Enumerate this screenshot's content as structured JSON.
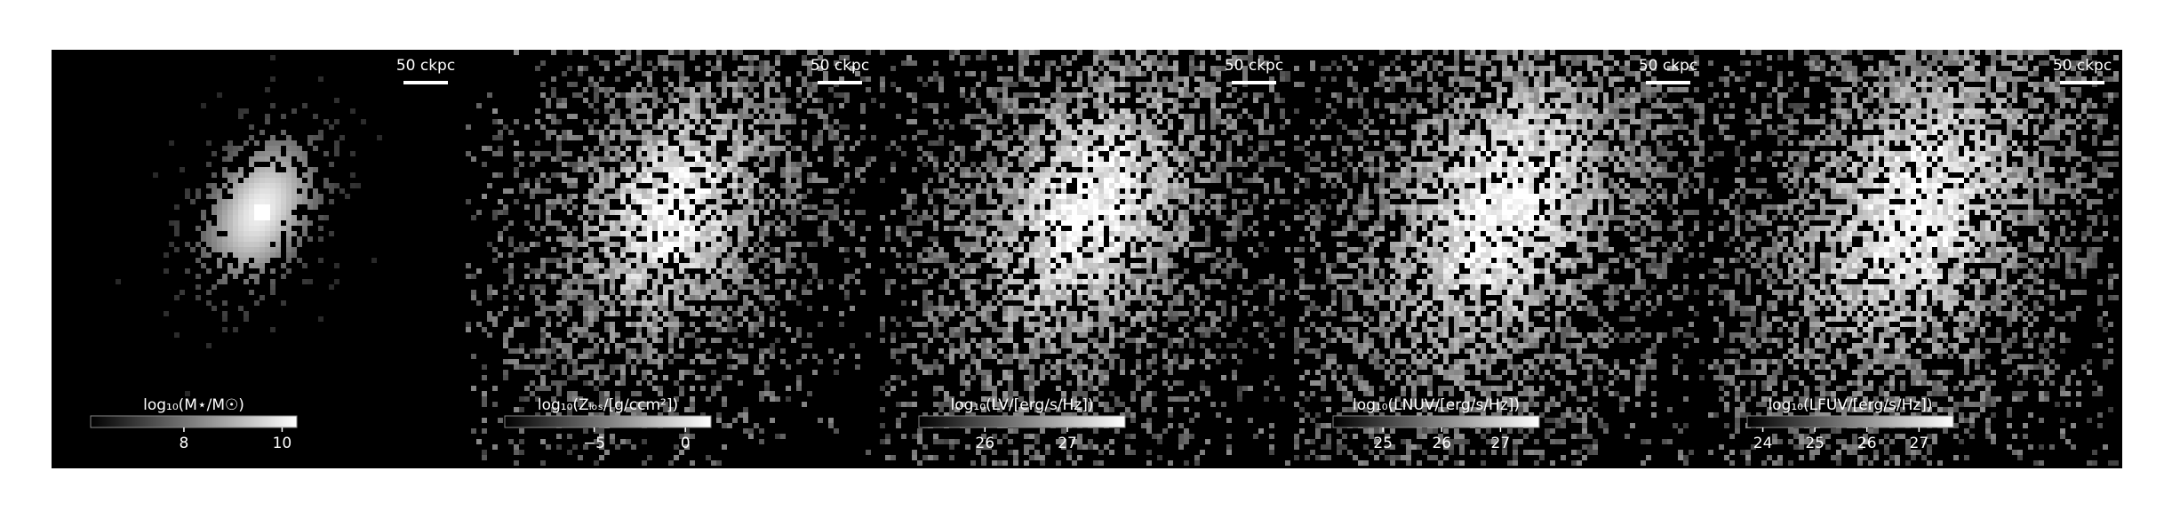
{
  "chart_data": [
    {
      "type": "image",
      "scalebar": "50 ckpc",
      "colorbar_label": "log₁₀(M⋆/M☉)",
      "clim": [
        6.1,
        10.3
      ],
      "ticks": [
        8,
        10
      ]
    },
    {
      "type": "image",
      "scalebar": "50 ckpc",
      "colorbar_label": "log₁₀(Zₗₒₛ/[g/ccm²])",
      "clim": [
        -9.9,
        1.4
      ],
      "ticks": [
        {
          "value": -5,
          "label": "−5"
        },
        0
      ]
    },
    {
      "type": "image",
      "scalebar": "50 ckpc",
      "colorbar_label": "log₁₀(LV/[erg/s/Hz])",
      "clim": [
        25.2,
        27.7
      ],
      "ticks": [
        26,
        27
      ]
    },
    {
      "type": "image",
      "scalebar": "50 ckpc",
      "colorbar_label": "log₁₀(LNUV/[erg/s/Hz])",
      "clim": [
        24.15,
        27.66
      ],
      "ticks": [
        25,
        26,
        27
      ]
    },
    {
      "type": "image",
      "scalebar": "50 ckpc",
      "colorbar_label": "log₁₀(LFUV/[erg/s/Hz])",
      "clim": [
        23.7,
        27.66
      ],
      "ticks": [
        24,
        25,
        26,
        27
      ]
    }
  ]
}
